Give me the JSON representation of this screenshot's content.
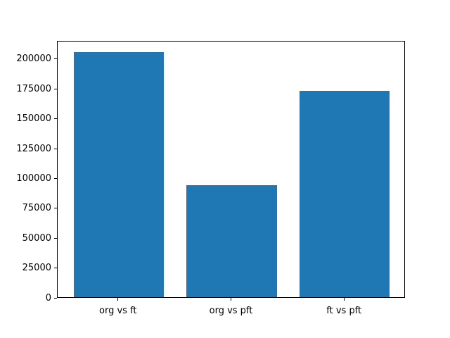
{
  "chart_data": {
    "type": "bar",
    "categories": [
      "org vs ft",
      "org vs pft",
      "ft vs pft"
    ],
    "values": [
      205000,
      94000,
      173000
    ],
    "title": "",
    "xlabel": "",
    "ylabel": "",
    "ylim": [
      0,
      215250
    ],
    "yticks": [
      0,
      25000,
      50000,
      75000,
      100000,
      125000,
      150000,
      175000,
      200000
    ],
    "ytick_labels": [
      "0",
      "25000",
      "50000",
      "75000",
      "100000",
      "125000",
      "150000",
      "175000",
      "200000"
    ],
    "bar_color": "#1f77b4",
    "background_color": "#ffffff",
    "grid": false,
    "legend_position": "none"
  }
}
